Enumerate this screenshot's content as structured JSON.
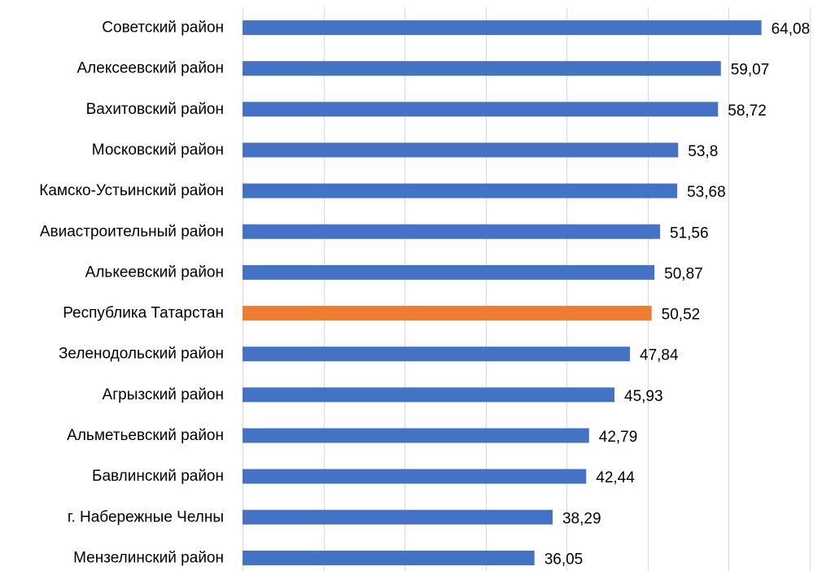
{
  "chart_data": {
    "type": "bar",
    "orientation": "horizontal",
    "title": "",
    "xlabel": "",
    "ylabel": "",
    "xlim": [
      0,
      70
    ],
    "grid": true,
    "legend": "none",
    "value_labels": true,
    "colors": {
      "default": "#4472C4",
      "highlight": "#ED7D31",
      "grid": "#D9D9D9"
    },
    "categories": [
      "Советский район",
      "Алексеевский район",
      "Вахитовский район",
      "Московский район",
      "Камско-Устьинский район",
      "Авиастроительный район",
      "Алькеевский район",
      "Республика Татарстан",
      "Зеленодольский район",
      "Агрызский район",
      "Альметьевский район",
      "Бавлинский район",
      "г. Набережные Челны",
      "Мензелинский район"
    ],
    "values": [
      64.08,
      59.07,
      58.72,
      53.8,
      53.68,
      51.56,
      50.87,
      50.52,
      47.84,
      45.93,
      42.79,
      42.44,
      38.29,
      36.05
    ],
    "value_labels_text": [
      "64,08",
      "59,07",
      "58,72",
      "53,8",
      "53,68",
      "51,56",
      "50,87",
      "50,52",
      "47,84",
      "45,93",
      "42,79",
      "42,44",
      "38,29",
      "36,05"
    ],
    "highlight_category": "Республика Татарстан"
  }
}
